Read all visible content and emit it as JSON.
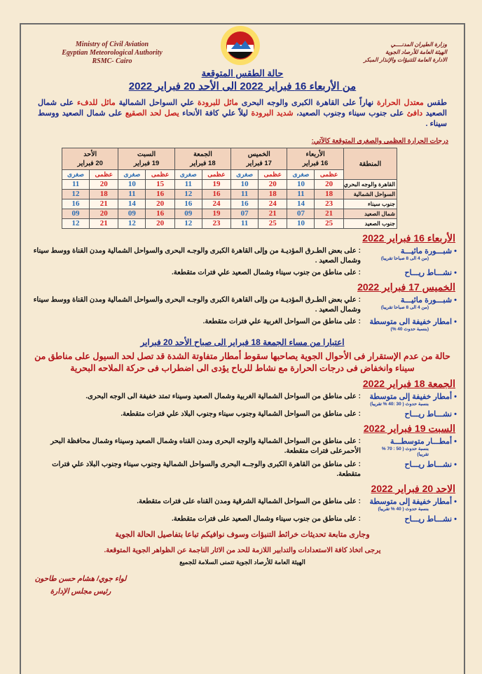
{
  "header": {
    "en_lines": [
      "Ministry of Civil Aviation",
      "Egyptian Meteorological Authority",
      "RSMC- Cairo"
    ],
    "ar_lines": [
      "وزارة الطيران المدنــــي",
      "الهيئة العامة للأرصاد الجوية",
      "الادارة العامة للتنبؤات والإنذار المبكر"
    ],
    "logo": "ema-logo"
  },
  "title": "حالة الطقس المتوقعة",
  "subtitle": "من الأربعاء 16 فبراير 2022 الى الأحد 20 فبراير 2022",
  "summary": {
    "p1": "طقس ",
    "p2": "معتدل الحرارة",
    "p3": " نهاراً على القاهرة الكبرى والوجه البحرى ",
    "p4": "مائل للبرودة",
    "p5": " علي السواحل الشمالية ",
    "p6": "مائل للدفء",
    "p7": " على شمال الصعيد ",
    "p8": "دافئ",
    "p9": " على جنوب سيناء وجنوب الصعيد، ",
    "p10": "شديد البرودة",
    "p11": " ليلاً علي كافة الأنحاء ",
    "p12": "يصل لحد الصقيع",
    "p13": " على شمال الصعيد ووسط سيناء ."
  },
  "table": {
    "caption": "درجات الحرارة العظمى والصغرى المتوقعة كالآتي:",
    "region_header": "المنطقة",
    "max_label": "عظمى",
    "min_label": "صغرى",
    "days": [
      {
        "day": "الأربعاء",
        "date": "16 فبراير"
      },
      {
        "day": "الخميس",
        "date": "17 فبراير"
      },
      {
        "day": "الجمعة",
        "date": "18 فبراير"
      },
      {
        "day": "السبت",
        "date": "19 فبراير"
      },
      {
        "day": "الأحد",
        "date": "20 فبراير"
      }
    ],
    "rows": [
      {
        "region": "القاهرة والوجه البحري",
        "values": [
          [
            "20",
            "10"
          ],
          [
            "20",
            "10"
          ],
          [
            "19",
            "11"
          ],
          [
            "15",
            "10"
          ],
          [
            "20",
            "11"
          ]
        ]
      },
      {
        "region": "السواحل الشمالية",
        "values": [
          [
            "18",
            "11"
          ],
          [
            "18",
            "11"
          ],
          [
            "16",
            "12"
          ],
          [
            "16",
            "11"
          ],
          [
            "18",
            "12"
          ]
        ]
      },
      {
        "region": "جنوب سيناء",
        "values": [
          [
            "23",
            "14"
          ],
          [
            "24",
            "16"
          ],
          [
            "24",
            "16"
          ],
          [
            "20",
            "14"
          ],
          [
            "21",
            "16"
          ]
        ]
      },
      {
        "region": "شمال الصعيد",
        "values": [
          [
            "21",
            "07"
          ],
          [
            "21",
            "07"
          ],
          [
            "19",
            "09"
          ],
          [
            "16",
            "09"
          ],
          [
            "20",
            "09"
          ]
        ]
      },
      {
        "region": "جنوب الصعيد",
        "values": [
          [
            "25",
            "10"
          ],
          [
            "25",
            "11"
          ],
          [
            "23",
            "12"
          ],
          [
            "20",
            "12"
          ],
          [
            "21",
            "12"
          ]
        ]
      }
    ]
  },
  "days": [
    {
      "heading": "الأربعاء 16 فبراير 2022",
      "items": [
        {
          "phenomenon": "شبـــورة مائيـــة",
          "note": "(من 4 الى 8 صباحا تقريبا)",
          "desc": ": على بعض الطـرق المؤديـة من وإلى القاهرة الكبرى والوجـه البحرى والسواحل الشمالية ومدن القناة ووسط سيناء وشمال الصعيد ."
        },
        {
          "phenomenon": "نشـــاط ريـــاح",
          "note": "",
          "desc": ": على مناطق من جنوب سيناء وشمال الصعيد علي فترات متقطعة."
        }
      ]
    },
    {
      "heading": "الخميس 17 فبراير 2022",
      "items": [
        {
          "phenomenon": "شبـــورة مائيـــة",
          "note": "(من 4 الى 8 صباحا تقريبا)",
          "desc": ": علي بعض الطـرق المؤديـة من وإلى القاهرة الكبرى والوجـه البحرى والسواحل الشمالية ومدن القناة ووسط سيناء وشمال الصعيد ."
        },
        {
          "phenomenon": "امطار خفيفة الى متوسطة",
          "note": "(بنسبة حدوث 40 %)",
          "desc": ": على مناطق من السواحل الغربية علي فترات متقطعة."
        }
      ]
    }
  ],
  "banner": "اعتبارا من مساء الجمعة 18 فبراير الى صباح الأحد 20 فبراير",
  "alert": "حالة من عدم الإستقرار فى الأحوال الجوية يصاحبها سقوط أمطار متفاوتة الشدة قد تصل لحد السيول على مناطق من سيناء وانخفاض فى درجات الحرارة مع نشاط للرياح يؤدى الى اضطراب فى حركة الملاحه البحرية",
  "days2": [
    {
      "heading": "الجمعة 18 فبراير 2022",
      "items": [
        {
          "phenomenon": "أمطار خفيفة إلى متوسطة",
          "note": "بنسبة حدوث ( 30 :40 % تقريبا)",
          "desc": ": على مناطق من السواحل الشمالية الغربية وشمال الصعيد وسيناء تمتد خفيفة الى الوجه البحرى."
        },
        {
          "phenomenon": "نشـــاط ريـــاح",
          "note": "",
          "desc": ": على مناطق من السواحل الشمالية وجنوب سيناء وجنوب البلاد علي فترات متقطعة."
        }
      ]
    },
    {
      "heading": "السبت 19 فبراير 2022",
      "items": [
        {
          "phenomenon": "أمطـــار متوسطـــة",
          "note": "بنسبة حدوث ( 50 : 70 % تقريبا)",
          "desc": ": على مناطق من السواحل الشمالية والوجه البحرى ومدن القناه وشمال الصعيد وسيناء وشمال محافظة البحر الأحمرعلى فترات متقطعة."
        },
        {
          "phenomenon": "نشـــاط ريـــاح",
          "note": "",
          "desc": ": على مناطق من القاهرة الكبرى والوجــه البحرى والسواحل الشمالية وجنوب سيناء وجنوب البلاد علي فترات متقطعة."
        }
      ]
    },
    {
      "heading": "الاحد 20 فبراير 2022",
      "items": [
        {
          "phenomenon": "أمطار خفيفة إلى متوسطة",
          "note": "بنسبة حدوث ( 40 % تقريبا)",
          "desc": ": على مناطق من السواحل الشمالية الشرقية ومدن القناه على فترات متقطعة."
        },
        {
          "phenomenon": "نشـــاط ريـــاح",
          "note": "",
          "desc": ": على مناطق من جنوب سيناء وشمال الصعيد على فترات متقطعة."
        }
      ]
    }
  ],
  "footer": {
    "line1": "وجارى متابعة تحديثات خرائط التنبؤات وسوف نوافيكم تباعا بتفاصيل الحالة الجوية",
    "line2": "يرجى اتخاذ كافة الاستعدادات والتدابير اللازمة للحد من الاثار الناجمة عن الظواهر الجوية المتوقعة.",
    "line3": "الهيئة العامة للأرصاد الجوية تتمنى السلامة للجميع",
    "sig_name": "لواء جوي/ هشام حسن طاحون",
    "sig_title": "رئيس مجلس الإدارة"
  },
  "colors": {
    "background": "#f6ead3",
    "heading_blue": "#1a2a8a",
    "alert_red": "#c8201e",
    "max_red": "#d42424",
    "min_blue": "#2c6db3"
  }
}
